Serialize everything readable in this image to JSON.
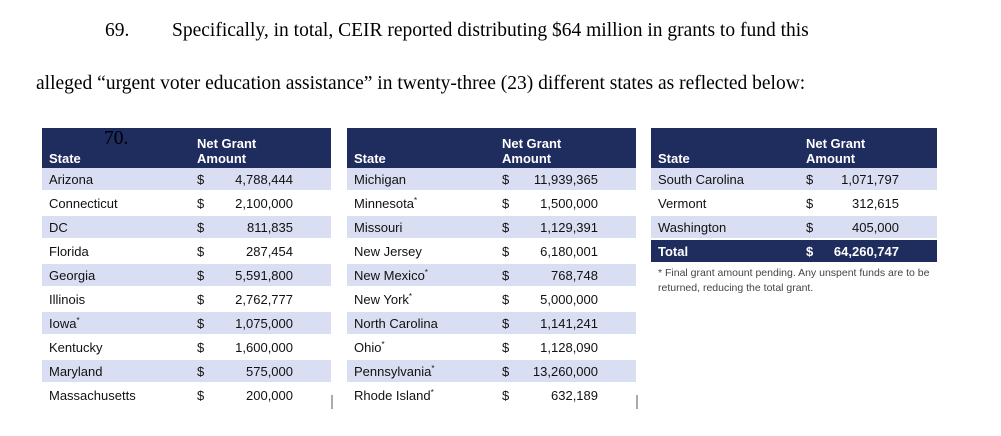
{
  "paragraph": {
    "number": "69.",
    "line1": "Specifically, in total, CEIR reported distributing $64 million in grants to fund this",
    "line2": "alleged “urgent voter education assistance” in twenty-three (23) different states as reflected below:",
    "next_number": "70."
  },
  "table_headers": {
    "state": "State",
    "amount_line1": "Net Grant",
    "amount_line2": "Amount"
  },
  "tables": [
    {
      "rows": [
        {
          "state": "Arizona",
          "star": "",
          "dollar": "$",
          "amount": "4,788,444"
        },
        {
          "state": "Connecticut",
          "star": "",
          "dollar": "$",
          "amount": "2,100,000"
        },
        {
          "state": "DC",
          "star": "",
          "dollar": "$",
          "amount": "811,835"
        },
        {
          "state": "Florida",
          "star": "",
          "dollar": "$",
          "amount": "287,454"
        },
        {
          "state": "Georgia",
          "star": "",
          "dollar": "$",
          "amount": "5,591,800"
        },
        {
          "state": "Illinois",
          "star": "",
          "dollar": "$",
          "amount": "2,762,777"
        },
        {
          "state": "Iowa",
          "star": "*",
          "dollar": "$",
          "amount": "1,075,000"
        },
        {
          "state": "Kentucky",
          "star": "",
          "dollar": "$",
          "amount": "1,600,000"
        },
        {
          "state": "Maryland",
          "star": "",
          "dollar": "$",
          "amount": "575,000"
        },
        {
          "state": "Massachusetts",
          "star": "",
          "dollar": "$",
          "amount": "200,000"
        }
      ]
    },
    {
      "rows": [
        {
          "state": "Michigan",
          "star": "",
          "dollar": "$",
          "amount": "11,939,365"
        },
        {
          "state": "Minnesota",
          "star": "*",
          "dollar": "$",
          "amount": "1,500,000"
        },
        {
          "state": "Missouri",
          "star": "",
          "dollar": "$",
          "amount": "1,129,391"
        },
        {
          "state": "New Jersey",
          "star": "",
          "dollar": "$",
          "amount": "6,180,001"
        },
        {
          "state": "New Mexico",
          "star": "*",
          "dollar": "$",
          "amount": "768,748"
        },
        {
          "state": "New York",
          "star": "*",
          "dollar": "$",
          "amount": "5,000,000"
        },
        {
          "state": "North Carolina",
          "star": "",
          "dollar": "$",
          "amount": "1,141,241"
        },
        {
          "state": "Ohio",
          "star": "*",
          "dollar": "$",
          "amount": "1,128,090"
        },
        {
          "state": "Pennsylvania",
          "star": "*",
          "dollar": "$",
          "amount": "13,260,000"
        },
        {
          "state": "Rhode Island",
          "star": "*",
          "dollar": "$",
          "amount": "632,189"
        }
      ]
    },
    {
      "rows": [
        {
          "state": "South Carolina",
          "star": "",
          "dollar": "$",
          "amount": "1,071,797"
        },
        {
          "state": "Vermont",
          "star": "",
          "dollar": "$",
          "amount": "312,615"
        },
        {
          "state": "Washington",
          "star": "",
          "dollar": "$",
          "amount": "405,000"
        }
      ],
      "total": {
        "label": "Total",
        "dollar": "$",
        "amount": "64,260,747"
      }
    }
  ],
  "footnote": "* Final grant amount pending. Any unspent funds are to be returned, reducing the total grant.",
  "colors": {
    "header_bg": "#1f2c5e",
    "stripe": "#d9def3"
  }
}
